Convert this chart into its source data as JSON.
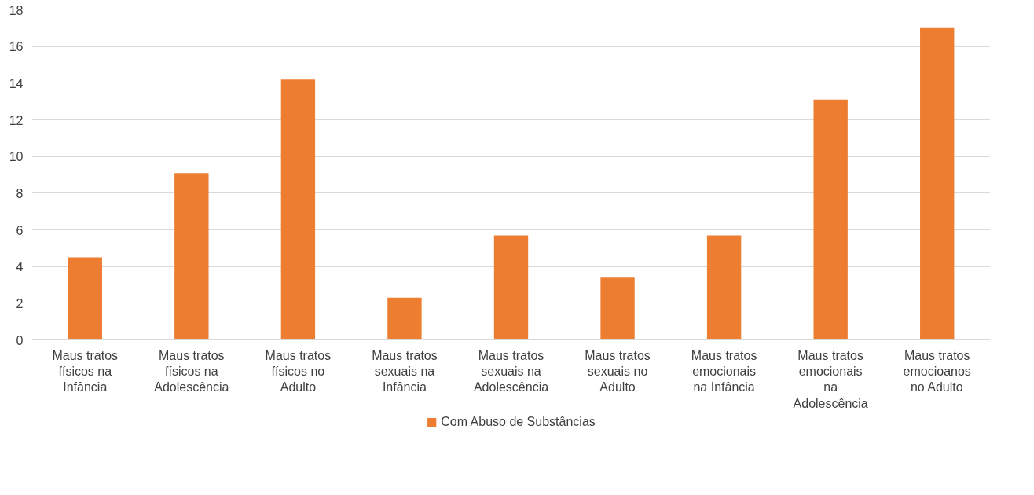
{
  "chart_data": {
    "type": "bar",
    "categories": [
      "Maus tratos físicos na Infância",
      "Maus tratos físicos na Adolescência",
      "Maus tratos físicos no Adulto",
      "Maus tratos sexuais na Infância",
      "Maus tratos sexuais na Adolescência",
      "Maus tratos sexuais no Adulto",
      "Maus tratos emocionais na Infância",
      "Maus tratos emocionais na Adolescência",
      "Maus tratos emocioanos no Adulto"
    ],
    "series": [
      {
        "name": "Com Abuso de Substâncias",
        "color": "#ed7d31",
        "values": [
          4.5,
          9.1,
          14.2,
          2.3,
          5.7,
          3.4,
          5.7,
          13.1,
          17.0
        ]
      }
    ],
    "ylim": [
      0,
      18
    ],
    "yticks": [
      0,
      2,
      4,
      6,
      8,
      10,
      12,
      14,
      16,
      18
    ],
    "grid": "y",
    "legend": "bottom"
  }
}
